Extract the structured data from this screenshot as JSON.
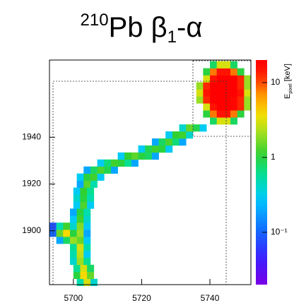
{
  "chart_data": {
    "type": "heatmap",
    "title": [
      "210",
      "Pb β",
      "1",
      "-α"
    ],
    "colorbar_label": [
      "E",
      "pixel",
      " [keV]"
    ],
    "xlim": [
      5693,
      5752
    ],
    "ylim": [
      1877,
      1973
    ],
    "xticks": [
      5700,
      5720,
      5740
    ],
    "yticks": [
      1900,
      1920,
      1940
    ],
    "zlim": [
      0.02,
      20
    ],
    "zlog": true,
    "zticks": [
      {
        "value": 0.1,
        "label": "10⁻¹"
      },
      1,
      10
    ],
    "x": [
      5702,
      5704,
      5706,
      5701,
      5703,
      5705,
      5701,
      5703,
      5705,
      5700,
      5702,
      5704,
      5700,
      5702,
      5704,
      5700,
      5702,
      5704,
      5696,
      5698,
      5700,
      5702,
      5704,
      5694,
      5696,
      5698,
      5700,
      5702,
      5704,
      5694,
      5696,
      5698,
      5700,
      5702,
      5704,
      5700,
      5702,
      5704,
      5700,
      5702,
      5704,
      5701,
      5703,
      5705,
      5701,
      5703,
      5705,
      5701,
      5703,
      5705,
      5702,
      5704,
      5706,
      5702,
      5704,
      5706,
      5708,
      5704,
      5706,
      5708,
      5710,
      5712,
      5708,
      5710,
      5712,
      5714,
      5716,
      5718,
      5714,
      5716,
      5718,
      5720,
      5722,
      5724,
      5720,
      5722,
      5724,
      5726,
      5728,
      5724,
      5726,
      5728,
      5730,
      5732,
      5728,
      5730,
      5732,
      5734,
      5732,
      5734,
      5736,
      5738,
      5741,
      5743,
      5745,
      5747,
      5739,
      5741,
      5743,
      5745,
      5747,
      5749,
      5739,
      5741,
      5743,
      5745,
      5747,
      5749,
      5751,
      5737,
      5739,
      5741,
      5743,
      5745,
      5747,
      5749,
      5751,
      5737,
      5739,
      5741,
      5743,
      5745,
      5747,
      5749,
      5751,
      5737,
      5739,
      5741,
      5743,
      5745,
      5747,
      5749,
      5751,
      5739,
      5741,
      5743,
      5745,
      5747,
      5749,
      5751,
      5739,
      5741,
      5743,
      5745,
      5747,
      5749,
      5741,
      5743,
      5745,
      5747
    ],
    "y": [
      1878,
      1878,
      1878,
      1881,
      1881,
      1881,
      1884,
      1884,
      1884,
      1887,
      1887,
      1887,
      1890,
      1890,
      1890,
      1893,
      1893,
      1893,
      1896,
      1896,
      1896,
      1896,
      1896,
      1899,
      1899,
      1899,
      1899,
      1899,
      1899,
      1902,
      1902,
      1902,
      1902,
      1902,
      1902,
      1905,
      1905,
      1905,
      1908,
      1908,
      1908,
      1911,
      1911,
      1911,
      1914,
      1914,
      1914,
      1917,
      1917,
      1917,
      1920,
      1920,
      1920,
      1923,
      1923,
      1923,
      1923,
      1926,
      1926,
      1926,
      1926,
      1926,
      1929,
      1929,
      1929,
      1929,
      1929,
      1929,
      1932,
      1932,
      1932,
      1932,
      1932,
      1932,
      1935,
      1935,
      1935,
      1935,
      1935,
      1938,
      1938,
      1938,
      1938,
      1938,
      1941,
      1941,
      1941,
      1941,
      1944,
      1944,
      1944,
      1944,
      1947,
      1947,
      1947,
      1947,
      1950,
      1950,
      1950,
      1950,
      1950,
      1950,
      1953,
      1953,
      1953,
      1953,
      1953,
      1953,
      1953,
      1956,
      1956,
      1956,
      1956,
      1956,
      1956,
      1956,
      1956,
      1959,
      1959,
      1959,
      1959,
      1959,
      1959,
      1959,
      1959,
      1962,
      1962,
      1962,
      1962,
      1962,
      1962,
      1962,
      1962,
      1965,
      1965,
      1965,
      1965,
      1965,
      1965,
      1965,
      1968,
      1968,
      1968,
      1968,
      1968,
      1968,
      1971,
      1971,
      1971,
      1971
    ],
    "values": [
      0.5,
      3,
      0.4,
      1,
      4,
      1.5,
      0.6,
      3,
      0.8,
      0.4,
      2,
      0.6,
      0.5,
      2.5,
      0.3,
      0.6,
      3,
      0.5,
      0.2,
      0.8,
      2,
      1.5,
      0.3,
      0.1,
      1.5,
      4,
      1,
      2,
      0.2,
      0.08,
      0.5,
      1.2,
      0.4,
      1.8,
      0.3,
      0.3,
      1.2,
      0.4,
      0.2,
      1,
      0.5,
      0.3,
      1.3,
      0.3,
      0.4,
      1,
      0.5,
      0.3,
      1.1,
      0.6,
      0.2,
      1.4,
      0.5,
      0.3,
      1,
      1.2,
      0.3,
      0.2,
      0.8,
      1.3,
      0.9,
      0.2,
      0.3,
      0.7,
      1.2,
      1,
      0.6,
      0.2,
      0.3,
      1.1,
      1.4,
      1,
      0.8,
      0.2,
      0.3,
      0.9,
      1.2,
      1,
      0.3,
      0.2,
      0.8,
      1.3,
      0.7,
      0.2,
      0.3,
      1.1,
      1.2,
      0.4,
      0.4,
      1.5,
      0.9,
      0.3,
      0.8,
      3,
      3,
      0.8,
      1,
      8,
      15,
      15,
      8,
      1,
      3,
      15,
      20,
      20,
      18,
      12,
      2,
      2,
      12,
      20,
      20,
      20,
      18,
      12,
      2,
      3,
      15,
      20,
      20,
      20,
      20,
      15,
      3,
      2,
      12,
      20,
      20,
      20,
      20,
      12,
      2,
      3,
      15,
      20,
      20,
      20,
      12,
      2,
      1,
      8,
      15,
      15,
      8,
      1,
      0.8,
      3,
      3,
      0.8
    ]
  }
}
